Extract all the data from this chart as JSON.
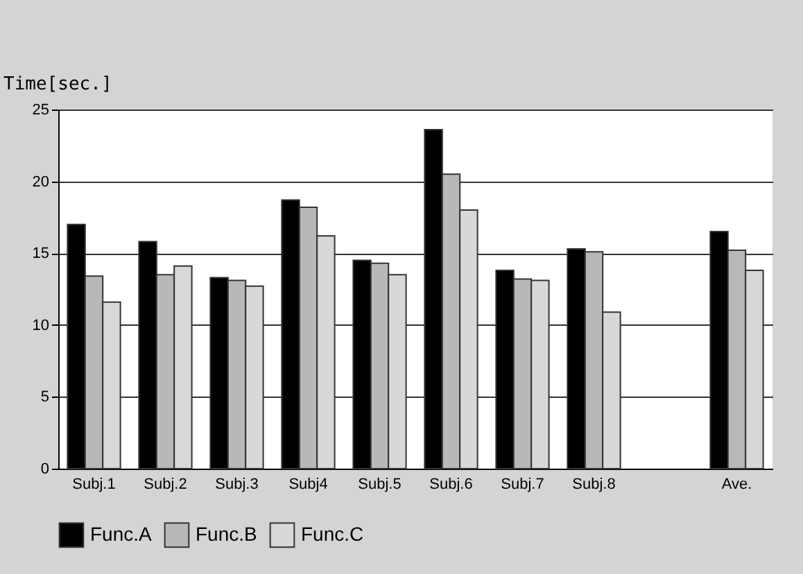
{
  "chart_data": {
    "type": "bar",
    "ylabel": "Time[sec.]",
    "categories": [
      "Subj.1",
      "Subj.2",
      "Subj.3",
      "Subj4",
      "Subj.5",
      "Subj.6",
      "Subj.7",
      "Subj.8",
      null,
      "Ave."
    ],
    "series": [
      {
        "name": "Func.A",
        "color": "#000000",
        "values": [
          17.0,
          15.8,
          13.3,
          18.7,
          14.5,
          23.6,
          13.8,
          15.3,
          null,
          16.5
        ]
      },
      {
        "name": "Func.B",
        "color": "#b8b8b8",
        "values": [
          13.4,
          13.5,
          13.1,
          18.2,
          14.3,
          20.5,
          13.2,
          15.1,
          null,
          15.2
        ]
      },
      {
        "name": "Func.C",
        "color": "#d8d8d8",
        "values": [
          11.6,
          14.1,
          12.7,
          16.2,
          13.5,
          18.0,
          13.1,
          10.9,
          null,
          13.8
        ]
      }
    ],
    "ylim": [
      0,
      25
    ],
    "yticks": [
      0,
      5,
      10,
      15,
      20,
      25
    ],
    "grid": "y",
    "legend": "bottom"
  }
}
